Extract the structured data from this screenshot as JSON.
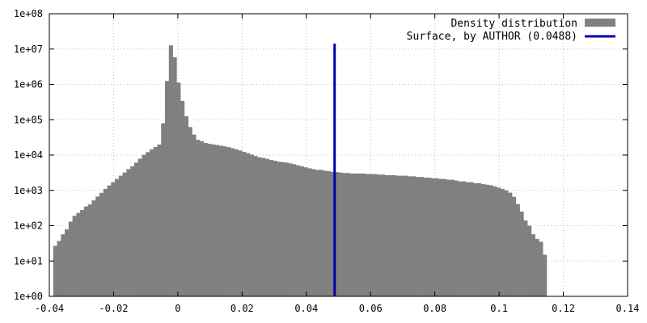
{
  "colors": {
    "histogram": "#808080",
    "surface_line": "#0000a8",
    "grid": "#c0c0c0",
    "frame": "#000000"
  },
  "chart_data": {
    "type": "bar",
    "title": "",
    "xlabel": "",
    "ylabel": "",
    "xlim": [
      -0.04,
      0.14
    ],
    "ylim": [
      1,
      100000000
    ],
    "yscale": "log",
    "grid": true,
    "legend_position": "top-right",
    "x_ticks": [
      {
        "value": -0.04,
        "label": "-0.04"
      },
      {
        "value": -0.02,
        "label": "-0.02"
      },
      {
        "value": 0,
        "label": "0"
      },
      {
        "value": 0.02,
        "label": "0.02"
      },
      {
        "value": 0.04,
        "label": "0.04"
      },
      {
        "value": 0.06,
        "label": "0.06"
      },
      {
        "value": 0.08,
        "label": "0.08"
      },
      {
        "value": 0.1,
        "label": "0.1"
      },
      {
        "value": 0.12,
        "label": "0.12"
      },
      {
        "value": 0.14,
        "label": "0.14"
      }
    ],
    "y_ticks": [
      {
        "value": 1,
        "label": "1e+00"
      },
      {
        "value": 10,
        "label": "1e+01"
      },
      {
        "value": 100,
        "label": "1e+02"
      },
      {
        "value": 1000,
        "label": "1e+03"
      },
      {
        "value": 10000,
        "label": "1e+04"
      },
      {
        "value": 100000,
        "label": "1e+05"
      },
      {
        "value": 1000000,
        "label": "1e+06"
      },
      {
        "value": 10000000,
        "label": "1e+07"
      },
      {
        "value": 100000000,
        "label": "1e+08"
      }
    ],
    "legend": [
      {
        "label": "Density distribution",
        "kind": "box"
      },
      {
        "label": "Surface, by AUTHOR (0.0488)",
        "kind": "line"
      }
    ],
    "histogram": {
      "name": "Density distribution",
      "x_start": -0.0388,
      "bin_width": 0.0012,
      "values": [
        27,
        37,
        57,
        79,
        130,
        190,
        230,
        280,
        350,
        400,
        520,
        670,
        850,
        1100,
        1380,
        1700,
        2100,
        2600,
        3200,
        4000,
        4800,
        6100,
        7900,
        10200,
        12100,
        14400,
        17000,
        19800,
        79000,
        1250000,
        12700000,
        5900000,
        1120000,
        340000,
        125000,
        62000,
        38000,
        27000,
        24500,
        22000,
        20800,
        20000,
        19200,
        18400,
        17600,
        16700,
        15600,
        14500,
        13400,
        12300,
        11300,
        10300,
        9400,
        8600,
        8300,
        7800,
        7300,
        6900,
        6500,
        6300,
        6100,
        5800,
        5500,
        5100,
        4800,
        4500,
        4200,
        4000,
        3800,
        3800,
        3600,
        3500,
        3300,
        3300,
        3200,
        3100,
        3100,
        3000,
        3000,
        3000,
        3000,
        2900,
        2900,
        2900,
        2800,
        2800,
        2700,
        2700,
        2700,
        2600,
        2600,
        2600,
        2500,
        2500,
        2400,
        2400,
        2300,
        2300,
        2200,
        2200,
        2100,
        2100,
        2000,
        2000,
        1900,
        1800,
        1800,
        1700,
        1700,
        1600,
        1600,
        1500,
        1450,
        1400,
        1300,
        1200,
        1100,
        1000,
        860,
        660,
        410,
        250,
        140,
        100,
        57,
        42,
        35,
        15
      ]
    },
    "surface_line": {
      "name": "Surface, by AUTHOR (0.0488)",
      "x": 0.0488
    }
  }
}
